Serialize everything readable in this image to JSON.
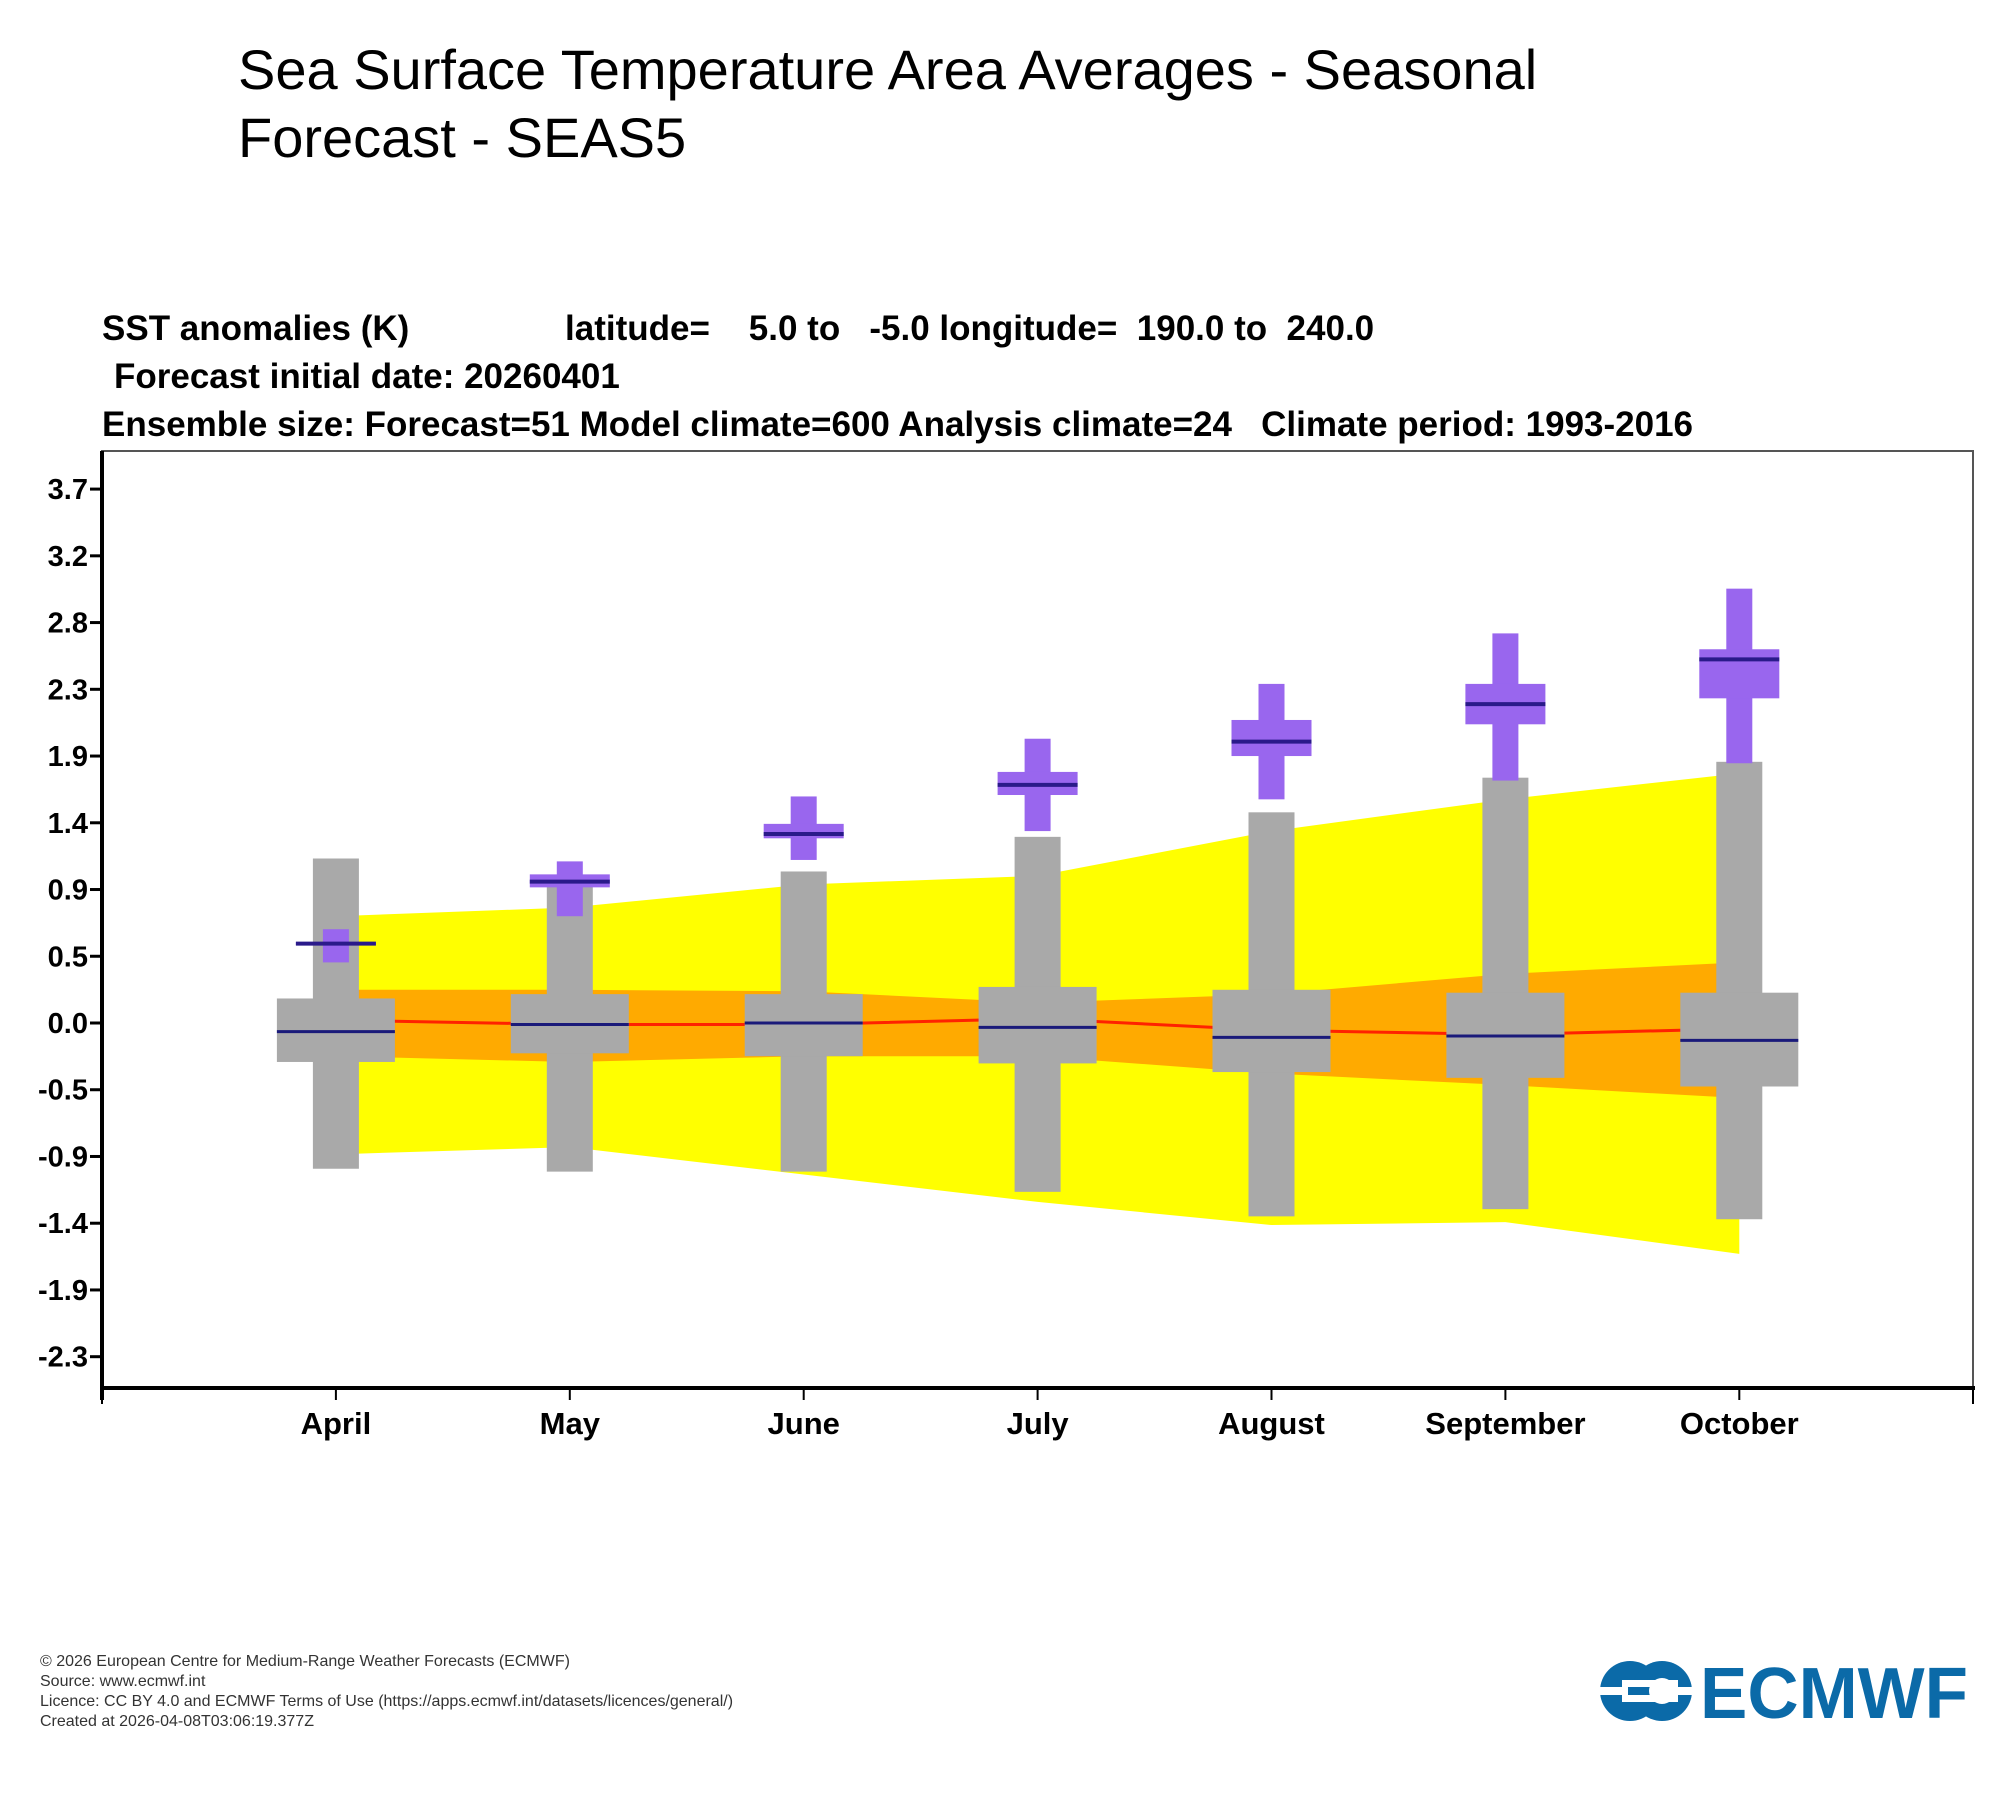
{
  "page": {
    "title": "Sea Surface Temperature Area Averages - Seasonal Forecast - SEAS5"
  },
  "chart_header": {
    "line1_var": "SST anomalies (K)",
    "line1_region": "latitude=    5.0 to   -5.0 longitude=  190.0 to  240.0",
    "line2": "Forecast initial date: 20260401",
    "line3": "Ensemble size: Forecast=51 Model climate=600 Analysis climate=24   Climate period: 1993-2016"
  },
  "chart_data": {
    "type": "box",
    "title": "SST anomalies (K)",
    "region": {
      "latitude": [
        5.0,
        -5.0
      ],
      "longitude": [
        190.0,
        240.0
      ]
    },
    "forecast_initial_date": "20260401",
    "ensemble_size": {
      "forecast": 51,
      "model_climate": 600,
      "analysis_climate": 24
    },
    "climate_period": "1993-2016",
    "xlabel": "",
    "ylabel": "SST anomalies (K)",
    "categories": [
      "April",
      "May",
      "June",
      "July",
      "August",
      "September",
      "October"
    ],
    "yticks": [
      "3.7",
      "3.2",
      "2.8",
      "2.3",
      "1.9",
      "1.4",
      "0.9",
      "0.5",
      "0.0",
      "-0.5",
      "-0.9",
      "-1.4",
      "-1.9",
      "-2.3"
    ],
    "ytick_values": [
      3.7,
      3.2375,
      2.775,
      2.3125,
      1.85,
      1.3875,
      0.925,
      0.4625,
      0.0,
      -0.4625,
      -0.925,
      -1.3875,
      -1.85,
      -2.3125
    ],
    "ylim": [
      -2.5,
      4.0
    ],
    "grid": false,
    "legend": "none",
    "series": [
      {
        "name": "Model climate (grey)",
        "color": "#a9a9a9",
        "median_color": "#1a1a7a",
        "min": [
          -1.01,
          -1.03,
          -1.03,
          -1.17,
          -1.34,
          -1.29,
          -1.36
        ],
        "q1": [
          -0.27,
          -0.21,
          -0.23,
          -0.28,
          -0.34,
          -0.38,
          -0.44
        ],
        "median": [
          -0.06,
          -0.01,
          0.0,
          -0.03,
          -0.1,
          -0.09,
          -0.12
        ],
        "q3": [
          0.17,
          0.2,
          0.2,
          0.25,
          0.23,
          0.21,
          0.21
        ],
        "max": [
          1.14,
          0.95,
          1.05,
          1.29,
          1.46,
          1.7,
          1.81
        ]
      },
      {
        "name": "Forecast (purple)",
        "color": "#9966ee",
        "median_color": "#2a1a8a",
        "min": [
          0.42,
          0.74,
          1.13,
          1.33,
          1.55,
          1.68,
          1.8
        ],
        "q1": [
          0.54,
          0.94,
          1.28,
          1.58,
          1.85,
          2.07,
          2.25
        ],
        "median": [
          0.55,
          0.98,
          1.31,
          1.65,
          1.95,
          2.21,
          2.52
        ],
        "q3": [
          0.56,
          1.03,
          1.38,
          1.74,
          2.1,
          2.35,
          2.59
        ],
        "max": [
          0.65,
          1.12,
          1.57,
          1.97,
          2.35,
          2.7,
          3.01
        ]
      },
      {
        "name": "Analysis climate outer range (yellow)",
        "color": "#ffff00",
        "upper": [
          0.74,
          0.8,
          0.96,
          1.02,
          1.33,
          1.55,
          1.73
        ],
        "lower": [
          -0.91,
          -0.86,
          -1.05,
          -1.24,
          -1.4,
          -1.38,
          -1.6
        ]
      },
      {
        "name": "Analysis climate inner range (orange)",
        "color": "#ffaa00",
        "upper": [
          0.23,
          0.23,
          0.22,
          0.14,
          0.2,
          0.34,
          0.42
        ],
        "lower": [
          -0.23,
          -0.27,
          -0.23,
          -0.23,
          -0.35,
          -0.43,
          -0.52
        ]
      },
      {
        "name": "Analysis climate median (red line)",
        "color": "#ff2200",
        "values": [
          0.02,
          -0.01,
          -0.01,
          0.03,
          -0.05,
          -0.08,
          -0.04
        ]
      }
    ]
  },
  "footer": {
    "copyright": "© 2026 European Centre for Medium-Range Weather Forecasts (ECMWF)",
    "source": "Source: www.ecmwf.int",
    "licence": "Licence: CC BY 4.0 and ECMWF Terms of Use (https://apps.ecmwf.int/datasets/licences/general/)",
    "created": "Created at 2026-04-08T03:06:19.377Z"
  },
  "logo": {
    "text": "ECMWF",
    "color": "#0b6aa8"
  }
}
